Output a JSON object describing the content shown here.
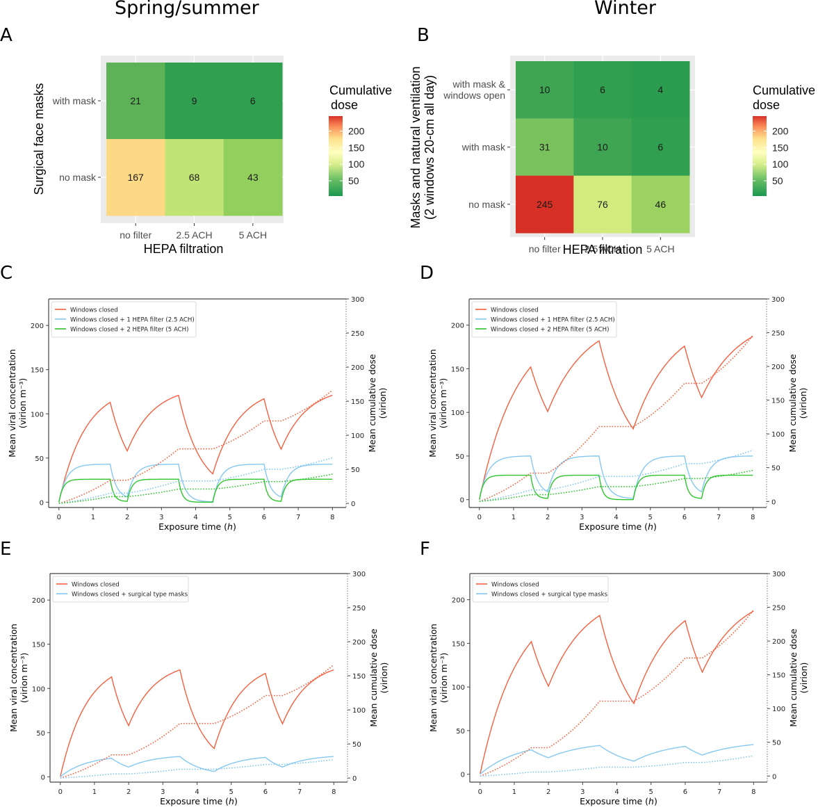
{
  "headers": {
    "left": "Spring/summer",
    "right": "Winter"
  },
  "panel_labels": [
    "A",
    "B",
    "C",
    "D",
    "E",
    "F"
  ],
  "chart_data": [
    {
      "id": "A",
      "type": "heatmap",
      "title": "",
      "xlabel": "HEPA filtration",
      "ylabel": "Surgical face masks",
      "x_categories": [
        "no filter",
        "2.5 ACH",
        "5 ACH"
      ],
      "y_categories": [
        "with mask",
        "no mask"
      ],
      "values": [
        [
          21,
          9,
          6
        ],
        [
          167,
          68,
          43
        ]
      ],
      "cell_colors": [
        [
          "#5db257",
          "#319f50",
          "#319f50"
        ],
        [
          "#fdd986",
          "#c2e477",
          "#93cf5c"
        ]
      ],
      "legend": {
        "title_line1": "Cumulative",
        "title_line2": "dose",
        "ticks": [
          50,
          100,
          150,
          200
        ],
        "range": [
          4,
          245
        ]
      }
    },
    {
      "id": "B",
      "type": "heatmap",
      "title": "",
      "xlabel": "HEPA filtration",
      "ylabel_line1": "Masks and natural ventilation",
      "ylabel_line2": "(2 windows 20-cm all day)",
      "x_categories": [
        "no filter",
        "2.5 ACH",
        "5 ACH"
      ],
      "y_categories": [
        [
          "with mask &",
          "windows open"
        ],
        [
          "with mask"
        ],
        [
          "no mask"
        ]
      ],
      "values": [
        [
          10,
          6,
          4
        ],
        [
          31,
          10,
          6
        ],
        [
          245,
          76,
          46
        ]
      ],
      "cell_colors": [
        [
          "#3fa553",
          "#319f50",
          "#2c9c4f"
        ],
        [
          "#79c15c",
          "#3fa553",
          "#319f50"
        ],
        [
          "#d73027",
          "#d2eb7f",
          "#9bd262"
        ]
      ],
      "legend": {
        "title_line1": "Cumulative",
        "title_line2": " dose",
        "ticks": [
          50,
          100,
          150,
          200
        ],
        "range": [
          4,
          245
        ]
      }
    },
    {
      "id": "C",
      "type": "line",
      "xlabel": "Exposure time (h)",
      "ylabel_line1": "Mean viral concentration",
      "ylabel_line2": "(virion m⁻³)",
      "y2label_line1": "Mean cumulative dose",
      "y2label_line2": "(virion)",
      "xlim": [
        -0.3,
        8.4
      ],
      "ylim": [
        -6,
        230
      ],
      "y2lim": [
        -6,
        300
      ],
      "xticks": [
        0,
        1,
        2,
        3,
        4,
        5,
        6,
        7,
        8
      ],
      "yticks": [
        0,
        50,
        100,
        150,
        200
      ],
      "y2ticks": [
        0,
        50,
        100,
        150,
        200,
        250,
        300
      ],
      "legend": [
        "Windows closed",
        "Windows closed + 1 HEPA filter (2.5 ACH)",
        "Windows closed + 2 HEPA filter (5 ACH)"
      ],
      "series": [
        {
          "name": "Windows closed",
          "color": "#f4603f",
          "kind": "concentration",
          "rate": 1.3,
          "x": [
            0,
            1.5,
            2,
            3.5,
            4.5,
            6,
            6.5,
            8
          ],
          "y": [
            0,
            113,
            58,
            121,
            32,
            117,
            60,
            121
          ]
        },
        {
          "name": "Windows closed + 1 HEPA filter (2.5 ACH)",
          "color": "#84c8f2",
          "kind": "concentration",
          "rate": 4.5,
          "x": [
            0,
            1.5,
            2,
            3.5,
            4.5,
            6,
            6.5,
            8
          ],
          "y": [
            0,
            43,
            6,
            43,
            0.5,
            43,
            6,
            43
          ]
        },
        {
          "name": "Windows closed + 2 HEPA filter (5 ACH)",
          "color": "#2ec42e",
          "kind": "concentration",
          "rate": 8,
          "x": [
            0,
            1.5,
            2,
            3.5,
            4.5,
            6,
            6.5,
            8
          ],
          "y": [
            0,
            26,
            1,
            26,
            0,
            26,
            1,
            26
          ]
        },
        {
          "name": "Windows closed (cumulative dose)",
          "color": "#f4603f",
          "kind": "dose",
          "x": [
            0,
            1.5,
            2,
            3.5,
            4.5,
            6,
            6.5,
            8
          ],
          "y": [
            0,
            34,
            34,
            80,
            80,
            121,
            121,
            166
          ]
        },
        {
          "name": "1 HEPA filter (cumulative dose)",
          "color": "#84c8f2",
          "kind": "dose",
          "x": [
            0,
            1.5,
            2,
            3.5,
            4.5,
            6,
            6.5,
            8
          ],
          "y": [
            0,
            15,
            15,
            33,
            33,
            50,
            50,
            67
          ]
        },
        {
          "name": "2 HEPA filter (cumulative dose)",
          "color": "#2ec42e",
          "kind": "dose",
          "x": [
            0,
            1.5,
            2,
            3.5,
            4.5,
            6,
            6.5,
            8
          ],
          "y": [
            0,
            10,
            10,
            21,
            21,
            32,
            32,
            43
          ]
        }
      ]
    },
    {
      "id": "D",
      "type": "line",
      "xlabel": "Exposure time (h)",
      "ylabel_line1": "Mean viral concentration",
      "ylabel_line2": "(virion m⁻³)",
      "y2label_line1": "Mean cumulative dose",
      "y2label_line2": "(virion)",
      "xlim": [
        -0.3,
        8.4
      ],
      "ylim": [
        -9,
        230
      ],
      "y2lim": [
        -9,
        300
      ],
      "xticks": [
        0,
        1,
        2,
        3,
        4,
        5,
        6,
        7,
        8
      ],
      "yticks": [
        0,
        50,
        100,
        150,
        200
      ],
      "y2ticks": [
        0,
        50,
        100,
        150,
        200,
        250,
        300
      ],
      "legend": [
        "Windows closed",
        "Windows closed + 1 HEPA filter (2.5 ACH)",
        "Windows closed + 2 HEPA filter (5 ACH)"
      ],
      "series": [
        {
          "name": "Windows closed",
          "color": "#f4603f",
          "kind": "concentration",
          "rate": 0.9,
          "x": [
            0,
            1.5,
            2,
            3.5,
            4.5,
            6,
            6.5,
            8
          ],
          "y": [
            0,
            152,
            101,
            182,
            81,
            176,
            117,
            187
          ]
        },
        {
          "name": "Windows closed + 1 HEPA filter (2.5 ACH)",
          "color": "#84c8f2",
          "kind": "concentration",
          "rate": 4,
          "x": [
            0,
            1.5,
            2,
            3.5,
            4.5,
            6,
            6.5,
            8
          ],
          "y": [
            0,
            50,
            9,
            50,
            1.5,
            50,
            9,
            50
          ]
        },
        {
          "name": "Windows closed + 2 HEPA filter (5 ACH)",
          "color": "#2ec42e",
          "kind": "concentration",
          "rate": 8,
          "x": [
            0,
            1.5,
            2,
            3.5,
            4.5,
            6,
            6.5,
            8
          ],
          "y": [
            0,
            28,
            1.5,
            28,
            0,
            28,
            1.5,
            28
          ]
        },
        {
          "name": "Windows closed (cumulative dose)",
          "color": "#f4603f",
          "kind": "dose",
          "x": [
            0,
            1.5,
            2,
            3.5,
            4.5,
            6,
            6.5,
            8
          ],
          "y": [
            0,
            42,
            42,
            111,
            111,
            175,
            175,
            246
          ]
        },
        {
          "name": "1 HEPA filter (cumulative dose)",
          "color": "#84c8f2",
          "kind": "dose",
          "x": [
            0,
            1.5,
            2,
            3.5,
            4.5,
            6,
            6.5,
            8
          ],
          "y": [
            0,
            17,
            17,
            37,
            37,
            56,
            56,
            76
          ]
        },
        {
          "name": "2 HEPA filter (cumulative dose)",
          "color": "#2ec42e",
          "kind": "dose",
          "x": [
            0,
            1.5,
            2,
            3.5,
            4.5,
            6,
            6.5,
            8
          ],
          "y": [
            0,
            10,
            10,
            22,
            22,
            34,
            34,
            46
          ]
        }
      ]
    },
    {
      "id": "E",
      "type": "line",
      "xlabel": "Exposure time (h)",
      "ylabel_line1": "Mean viral concentration",
      "ylabel_line2": "(virion m⁻³)",
      "y2label_line1": "Mean cumulative dose",
      "y2label_line2": "(virion)",
      "xlim": [
        -0.3,
        8.4
      ],
      "ylim": [
        -6,
        230
      ],
      "y2lim": [
        -6,
        300
      ],
      "xticks": [
        0,
        1,
        2,
        3,
        4,
        5,
        6,
        7,
        8
      ],
      "yticks": [
        0,
        50,
        100,
        150,
        200
      ],
      "y2ticks": [
        0,
        50,
        100,
        150,
        200,
        250,
        300
      ],
      "legend": [
        "Windows closed",
        "Windows closed + surgical type masks"
      ],
      "series": [
        {
          "name": "Windows closed",
          "color": "#f4603f",
          "kind": "concentration",
          "rate": 1.3,
          "x": [
            0,
            1.5,
            2,
            3.5,
            4.5,
            6,
            6.5,
            8
          ],
          "y": [
            0,
            113,
            58,
            121,
            32,
            117,
            60,
            121
          ]
        },
        {
          "name": "Windows closed + surgical type masks",
          "color": "#84c8f2",
          "kind": "concentration",
          "rate": 1.3,
          "x": [
            0,
            1.5,
            2,
            3.5,
            4.5,
            6,
            6.5,
            8
          ],
          "y": [
            0,
            21,
            11,
            23,
            6,
            22,
            11,
            23
          ]
        },
        {
          "name": "Windows closed (cumulative dose)",
          "color": "#f4603f",
          "kind": "dose",
          "x": [
            0,
            1.5,
            2,
            3.5,
            4.5,
            6,
            6.5,
            8
          ],
          "y": [
            0,
            34,
            34,
            80,
            80,
            121,
            121,
            166
          ]
        },
        {
          "name": "Surgical masks (cumulative dose)",
          "color": "#84c8f2",
          "kind": "dose",
          "x": [
            0,
            1.5,
            2,
            3.5,
            4.5,
            6,
            6.5,
            8
          ],
          "y": [
            0,
            6,
            6,
            13,
            13,
            20,
            20,
            27
          ]
        }
      ]
    },
    {
      "id": "F",
      "type": "line",
      "xlabel": "Exposure time (h)",
      "ylabel_line1": "Mean viral concentration",
      "ylabel_line2": "(virion m⁻³)",
      "y2label_line1": "Mean cumulative dose",
      "y2label_line2": "(virion)",
      "xlim": [
        -0.3,
        8.4
      ],
      "ylim": [
        -9,
        230
      ],
      "y2lim": [
        -9,
        300
      ],
      "xticks": [
        0,
        1,
        2,
        3,
        4,
        5,
        6,
        7,
        8
      ],
      "yticks": [
        0,
        50,
        100,
        150,
        200
      ],
      "y2ticks": [
        0,
        50,
        100,
        150,
        200,
        250,
        300
      ],
      "legend": [
        "Windows closed",
        "Windows closed + surgical type masks"
      ],
      "series": [
        {
          "name": "Windows closed",
          "color": "#f4603f",
          "kind": "concentration",
          "rate": 0.9,
          "x": [
            0,
            1.5,
            2,
            3.5,
            4.5,
            6,
            6.5,
            8
          ],
          "y": [
            0,
            152,
            101,
            182,
            81,
            176,
            117,
            187
          ]
        },
        {
          "name": "Windows closed + surgical type masks",
          "color": "#84c8f2",
          "kind": "concentration",
          "rate": 0.9,
          "x": [
            0,
            1.5,
            2,
            3.5,
            4.5,
            6,
            6.5,
            8
          ],
          "y": [
            0,
            28,
            19,
            33,
            15,
            32,
            22,
            34
          ]
        },
        {
          "name": "Windows closed (cumulative dose)",
          "color": "#f4603f",
          "kind": "dose",
          "x": [
            0,
            1.5,
            2,
            3.5,
            4.5,
            6,
            6.5,
            8
          ],
          "y": [
            0,
            42,
            42,
            111,
            111,
            175,
            175,
            246
          ]
        },
        {
          "name": "Surgical masks (cumulative dose)",
          "color": "#84c8f2",
          "kind": "dose",
          "x": [
            0,
            1.5,
            2,
            3.5,
            4.5,
            6,
            6.5,
            8
          ],
          "y": [
            0,
            6,
            6,
            13,
            13,
            20,
            20,
            30
          ]
        }
      ]
    }
  ]
}
